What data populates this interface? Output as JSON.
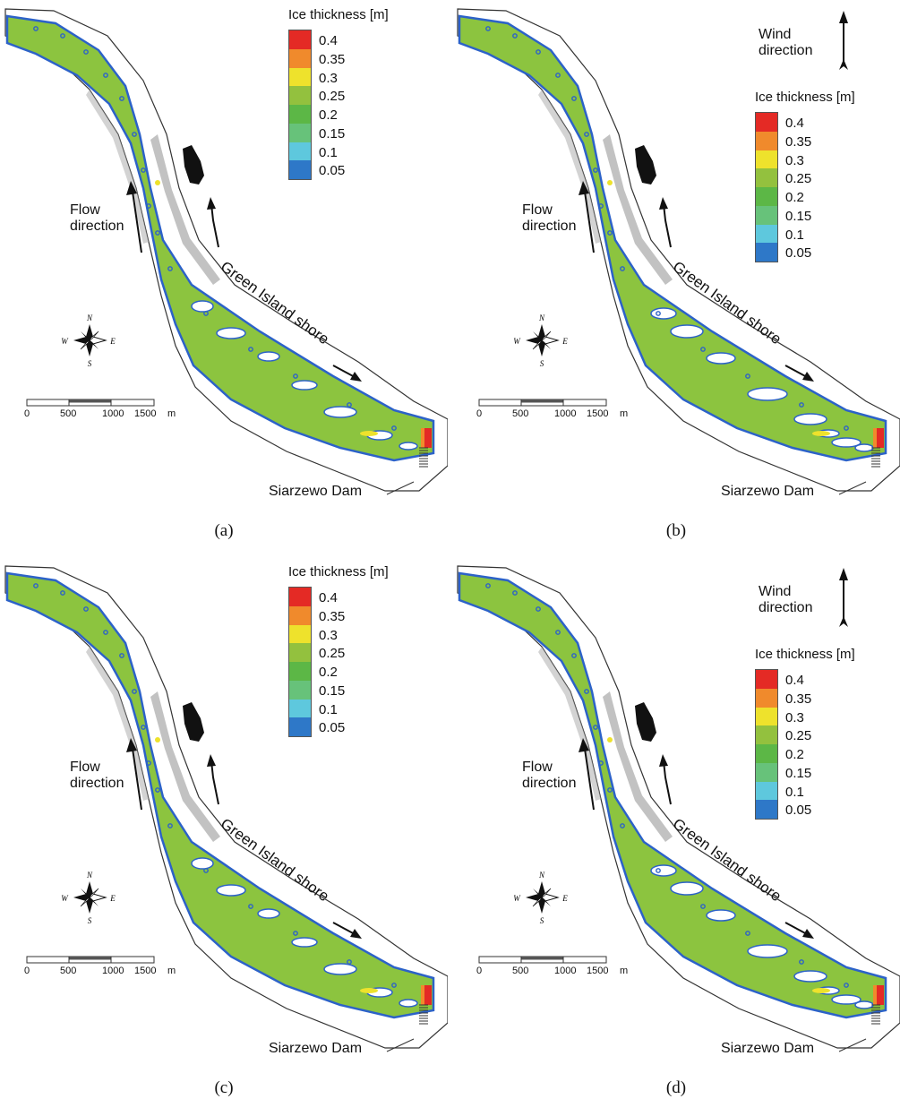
{
  "legend": {
    "title": "Ice thickness [m]",
    "levels": [
      {
        "label": "0.4",
        "color": "#e42a25"
      },
      {
        "label": "0.35",
        "color": "#f08a2c"
      },
      {
        "label": "0.3",
        "color": "#eee22c"
      },
      {
        "label": "0.25",
        "color": "#93c13e"
      },
      {
        "label": "0.2",
        "color": "#5cb746"
      },
      {
        "label": "0.15",
        "color": "#67c27a"
      },
      {
        "label": "0.1",
        "color": "#5ec8dd"
      },
      {
        "label": "0.05",
        "color": "#2e78c8"
      }
    ],
    "bottom_color": "#224fa0"
  },
  "labels": {
    "flow_line1": "Flow",
    "flow_line2": "direction",
    "wind_line1": "Wind",
    "wind_line2": "direction",
    "shore": "Green Island shore",
    "dam": "Siarzewo Dam"
  },
  "compass": {
    "n": "N",
    "s": "S",
    "e": "E",
    "w": "W"
  },
  "scale_bar": {
    "ticks": [
      "0",
      "500",
      "1000",
      "1500"
    ],
    "unit": "m"
  },
  "panels": [
    {
      "caption": "(a)",
      "has_wind": false
    },
    {
      "caption": "(b)",
      "has_wind": true
    },
    {
      "caption": "(c)",
      "has_wind": false
    },
    {
      "caption": "(d)",
      "has_wind": true
    }
  ],
  "colors": {
    "ice": "#8cc43f",
    "ice_edge": "#2c62c8",
    "bank": "#ffffff",
    "bank_outline": "#333333",
    "island": "#111111"
  }
}
